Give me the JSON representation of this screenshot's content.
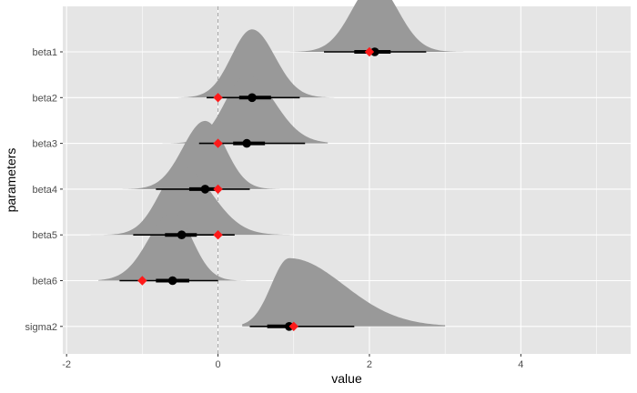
{
  "chart_data": {
    "type": "density-interval",
    "xlabel": "value",
    "ylabel": "parameters",
    "xlim": [
      -2.05,
      5.45
    ],
    "x_ticks": [
      "-2",
      "0",
      "2",
      "4"
    ],
    "x_tick_values": [
      -2,
      0,
      2,
      4
    ],
    "grid": true,
    "reference_line": {
      "x": 0,
      "style": "dashed"
    },
    "colors": {
      "panel": "#e5e5e5",
      "grid": "#ffffff",
      "density_fill": "#999999",
      "point": "#000000",
      "true_value": "#ff1a1a",
      "refline": "#a6a6a6"
    },
    "parameters": [
      {
        "name": "beta1",
        "median": 2.07,
        "inner": [
          1.8,
          2.28
        ],
        "outer": [
          1.4,
          2.75
        ],
        "density_range": [
          0.95,
          3.35
        ],
        "true_value": 2.0,
        "skew": 0.0
      },
      {
        "name": "beta2",
        "median": 0.45,
        "inner": [
          0.28,
          0.7
        ],
        "outer": [
          -0.15,
          1.08
        ],
        "density_range": [
          -0.75,
          1.6
        ],
        "true_value": 0.0,
        "skew": 0.05
      },
      {
        "name": "beta3",
        "median": 0.38,
        "inner": [
          0.2,
          0.62
        ],
        "outer": [
          -0.25,
          1.15
        ],
        "density_range": [
          -0.82,
          1.45
        ],
        "true_value": 0.0,
        "skew": 0.05
      },
      {
        "name": "beta4",
        "median": -0.17,
        "inner": [
          -0.38,
          0.02
        ],
        "outer": [
          -0.82,
          0.42
        ],
        "density_range": [
          -1.4,
          0.88
        ],
        "true_value": 0.0,
        "skew": 0.0
      },
      {
        "name": "beta5",
        "median": -0.48,
        "inner": [
          -0.7,
          -0.28
        ],
        "outer": [
          -1.12,
          0.22
        ],
        "density_range": [
          -1.72,
          1.0
        ],
        "true_value": 0.0,
        "skew": 0.25
      },
      {
        "name": "beta6",
        "median": -0.6,
        "inner": [
          -0.82,
          -0.38
        ],
        "outer": [
          -1.3,
          0.0
        ],
        "density_range": [
          -1.58,
          0.5
        ],
        "true_value": -1.0,
        "skew": -0.05
      },
      {
        "name": "sigma2",
        "median": 0.94,
        "inner": [
          0.65,
          1.02
        ],
        "outer": [
          0.42,
          1.8
        ],
        "density_range": [
          0.32,
          3.0
        ],
        "true_value": 1.0,
        "skew": 0.85
      }
    ]
  }
}
